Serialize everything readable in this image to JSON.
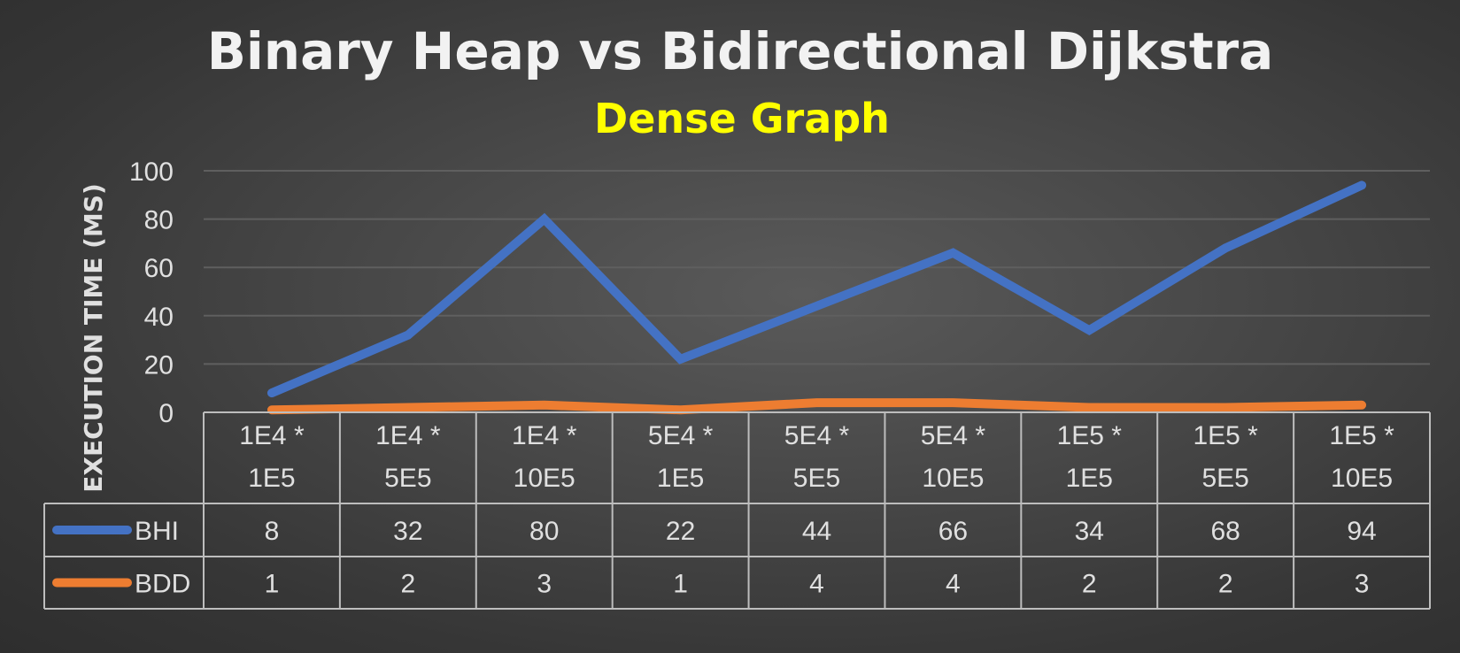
{
  "chart_data": {
    "type": "line",
    "title": "Binary Heap vs Bidirectional Dijkstra",
    "subtitle": "Dense Graph",
    "ylabel": "EXECUTION TIME (MS)",
    "xlabel": "",
    "ylim": [
      0,
      100
    ],
    "yticks": [
      0,
      20,
      40,
      60,
      80,
      100
    ],
    "grid": true,
    "legend_placement": "data-table",
    "categories": [
      [
        "1E4 *",
        "1E5"
      ],
      [
        "1E4 *",
        "5E5"
      ],
      [
        "1E4 *",
        "10E5"
      ],
      [
        "5E4 *",
        "1E5"
      ],
      [
        "5E4 *",
        "5E5"
      ],
      [
        "5E4 *",
        "10E5"
      ],
      [
        "1E5 *",
        "1E5"
      ],
      [
        "1E5 *",
        "5E5"
      ],
      [
        "1E5 *",
        "10E5"
      ]
    ],
    "series": [
      {
        "name": "BHI",
        "color": "#4472c4",
        "values": [
          8,
          32,
          80,
          22,
          44,
          66,
          34,
          68,
          94
        ]
      },
      {
        "name": "BDD",
        "color": "#ed7d31",
        "values": [
          1,
          2,
          3,
          1,
          4,
          4,
          2,
          2,
          3
        ]
      }
    ]
  },
  "colors": {
    "title": "#f2f2f2",
    "subtitle": "#ffff00",
    "text": "#e0e0e0",
    "grid": "#5f5f5f",
    "table_border": "#bdbdbd"
  }
}
